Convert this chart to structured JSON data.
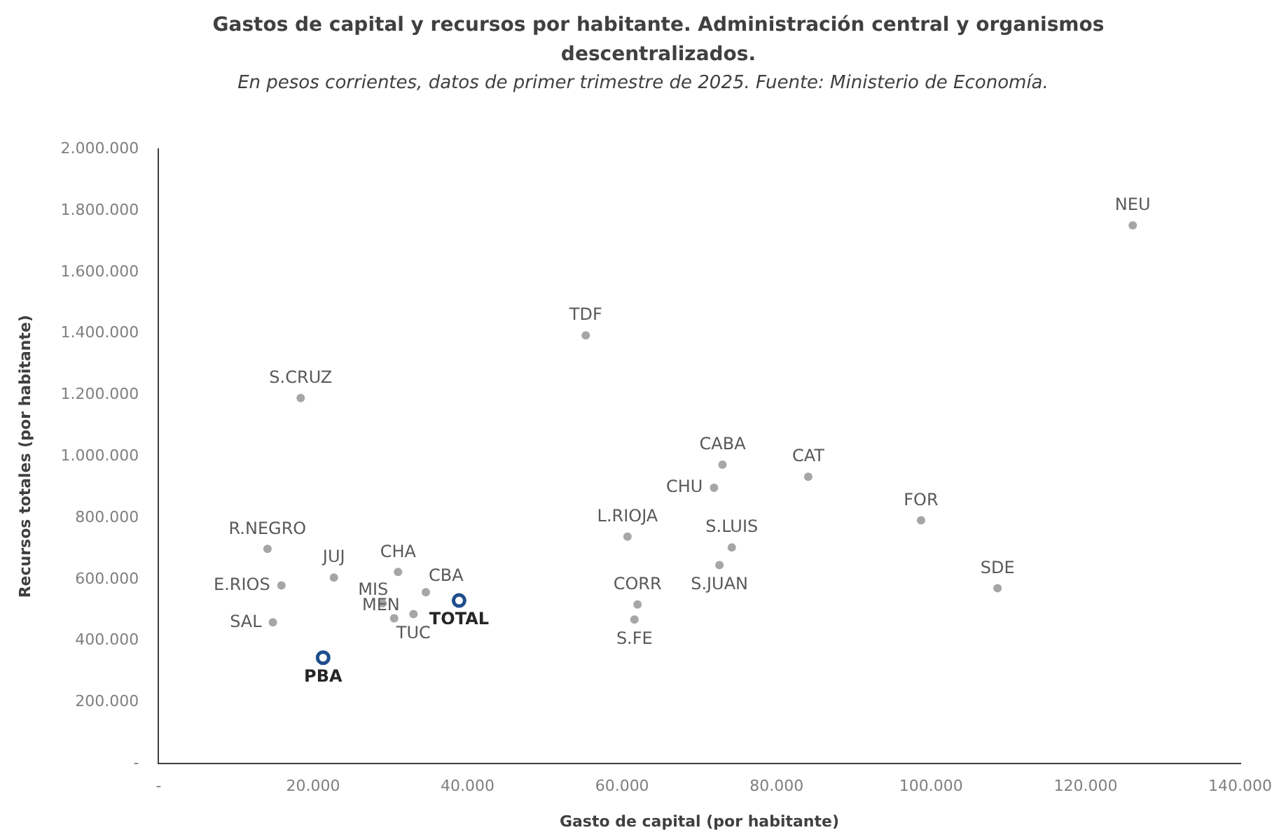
{
  "chart_data": {
    "type": "scatter",
    "title": "Gastos de capital y recursos por habitante. Administración central y organismos descentralizados.",
    "subtitle": "En pesos corrientes, datos de primer trimestre de 2025. Fuente: Ministerio de Economía.",
    "xlabel": "Gasto de capital (por habitante)",
    "ylabel": "Recursos totales (por habitante)",
    "series": [
      {
        "color": "#a6a6a6",
        "x": [
          126100,
          55300,
          18400,
          73000,
          84100,
          71900,
          98700,
          60700,
          74200,
          14100,
          22700,
          31000,
          34600,
          15900,
          29000,
          30500,
          108600,
          62000,
          61600,
          72600,
          14800,
          33000
        ],
        "values": [
          1752000,
          1394000,
          1190000,
          973000,
          934000,
          898000,
          792000,
          739000,
          704000,
          699000,
          606000,
          624000,
          558000,
          580000,
          522000,
          473000,
          571000,
          518000,
          469000,
          646000,
          460000,
          487000
        ]
      },
      {
        "color": "#1f4e8c",
        "x": [
          38900,
          21300
        ],
        "values": [
          531000,
          345000
        ]
      }
    ],
    "annotations": [
      {
        "text": "NEU",
        "x": 126100,
        "y": 1752000
      },
      {
        "text": "TDF",
        "x": 55300,
        "y": 1394000
      },
      {
        "text": "S.CRUZ",
        "x": 18400,
        "y": 1190000
      },
      {
        "text": "CABA",
        "x": 73000,
        "y": 973000
      },
      {
        "text": "CAT",
        "x": 84100,
        "y": 934000
      },
      {
        "text": "CHU",
        "x": 71900,
        "y": 898000
      },
      {
        "text": "FOR",
        "x": 98700,
        "y": 792000
      },
      {
        "text": "L.RIOJA",
        "x": 60700,
        "y": 739000
      },
      {
        "text": "S.LUIS",
        "x": 74200,
        "y": 704000
      },
      {
        "text": "R.NEGRO",
        "x": 14100,
        "y": 699000
      },
      {
        "text": "JUJ",
        "x": 22700,
        "y": 606000
      },
      {
        "text": "CHA",
        "x": 31000,
        "y": 624000
      },
      {
        "text": "CBA",
        "x": 34600,
        "y": 558000
      },
      {
        "text": "E.RIOS",
        "x": 15900,
        "y": 580000
      },
      {
        "text": "MIS",
        "x": 29000,
        "y": 522000
      },
      {
        "text": "MEN",
        "x": 30500,
        "y": 473000
      },
      {
        "text": "SDE",
        "x": 108600,
        "y": 571000
      },
      {
        "text": "CORR",
        "x": 62000,
        "y": 518000
      },
      {
        "text": "S.FE",
        "x": 61600,
        "y": 469000
      },
      {
        "text": "S.JUAN",
        "x": 72600,
        "y": 646000
      },
      {
        "text": "SAL",
        "x": 14800,
        "y": 460000
      },
      {
        "text": "TUC",
        "x": 33000,
        "y": 487000
      },
      {
        "text": "TOTAL",
        "x": 38900,
        "y": 531000
      },
      {
        "text": "PBA",
        "x": 21300,
        "y": 345000
      }
    ],
    "xlim": [
      0,
      140000
    ],
    "xticks": [
      {
        "value": 0,
        "label": "-"
      },
      {
        "value": 20000,
        "label": "20.000"
      },
      {
        "value": 40000,
        "label": "40.000"
      },
      {
        "value": 60000,
        "label": "60.000"
      },
      {
        "value": 80000,
        "label": "80.000"
      },
      {
        "value": 100000,
        "label": "100.000"
      },
      {
        "value": 120000,
        "label": "120.000"
      },
      {
        "value": 140000,
        "label": "140.000"
      }
    ],
    "ylim": [
      0,
      2000000
    ],
    "yticks": [
      {
        "value": 0,
        "label": "-"
      },
      {
        "value": 200000,
        "label": "200.000"
      },
      {
        "value": 400000,
        "label": "400.000"
      },
      {
        "value": 600000,
        "label": "600.000"
      },
      {
        "value": 800000,
        "label": "800.000"
      },
      {
        "value": 1000000,
        "label": "1.000.000"
      },
      {
        "value": 1200000,
        "label": "1.200.000"
      },
      {
        "value": 1400000,
        "label": "1.400.000"
      },
      {
        "value": 1600000,
        "label": "1.600.000"
      },
      {
        "value": 1800000,
        "label": "1.800.000"
      },
      {
        "value": 2000000,
        "label": "2.000.000"
      }
    ],
    "marker": "circle",
    "grid": false,
    "legend": false
  }
}
